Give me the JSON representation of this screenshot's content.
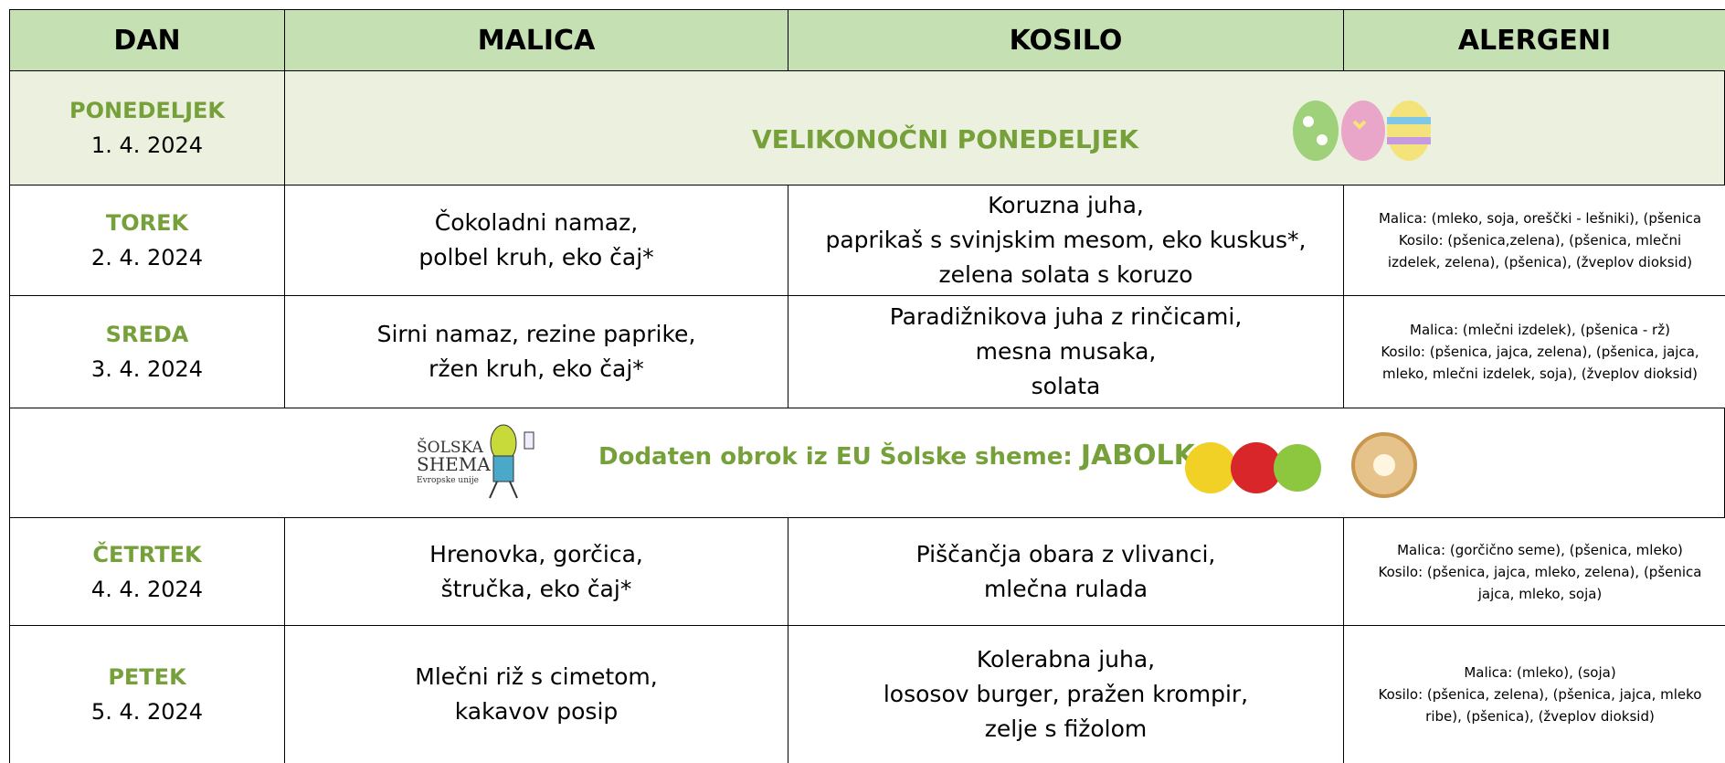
{
  "header": [
    "DAN",
    "MALICA",
    "KOSILO",
    "ALERGENI"
  ],
  "holiday": {
    "day": "PONEDELJEK",
    "date": "1. 4. 2024",
    "text": "VELIKONOČNI PONEDELJEK"
  },
  "days": [
    {
      "day": "TOREK",
      "date": "2. 4. 2024",
      "malica": [
        "Čokoladni namaz,",
        "polbel kruh, eko čaj*"
      ],
      "kosilo": [
        "Koruzna juha,",
        "paprikaš s svinjskim mesom, eko kuskus*,",
        "zelena solata s koruzo"
      ],
      "alergeni": [
        "Malica: (mleko, soja, oreščki - lešniki), (pšenica",
        "Kosilo: (pšenica,zelena), (pšenica, mlečni",
        "izdelek, zelena), (pšenica), (žveplov dioksid)"
      ]
    },
    {
      "day": "SREDA",
      "date": "3. 4. 2024",
      "malica": [
        "Sirni namaz, rezine paprike,",
        "ržen kruh, eko čaj*"
      ],
      "kosilo": [
        "Paradižnikova juha z rinčicami,",
        "mesna musaka,",
        "solata"
      ],
      "alergeni": [
        "Malica: (mlečni izdelek), (pšenica - rž)",
        "Kosilo: (pšenica, jajca, zelena), (pšenica, jajca,",
        "mleko, mlečni izdelek, soja), (žveplov dioksid)"
      ]
    },
    {
      "day": "ČETRTEK",
      "date": "4. 4. 2024",
      "malica": [
        "Hrenovka, gorčica,",
        "štručka, eko čaj*"
      ],
      "kosilo": [
        "Piščančja obara z vlivanci,",
        "mlečna rulada"
      ],
      "alergeni": [
        "Malica: (gorčično seme), (pšenica, mleko)",
        "Kosilo: (pšenica, jajca, mleko, zelena), (pšenica",
        "jajca, mleko, soja)"
      ]
    },
    {
      "day": "PETEK",
      "date": "5. 4. 2024",
      "malica": [
        "Mlečni riž s cimetom,",
        "kakavov posip"
      ],
      "kosilo": [
        "Kolerabna juha,",
        "lososov burger, pražen krompir,",
        "zelje s fižolom"
      ],
      "alergeni": [
        "Malica: (mleko), (soja)",
        "Kosilo: (pšenica, zelena), (pšenica, jajca, mleko",
        "ribe), (pšenica), (žveplov dioksid)"
      ]
    }
  ],
  "scheme": {
    "logo": [
      "ŠOLSKA",
      "SHEMA",
      "Evropske unije"
    ],
    "text": "Dodaten obrok iz EU Šolske sheme:",
    "highlight": "JABOLKA"
  }
}
